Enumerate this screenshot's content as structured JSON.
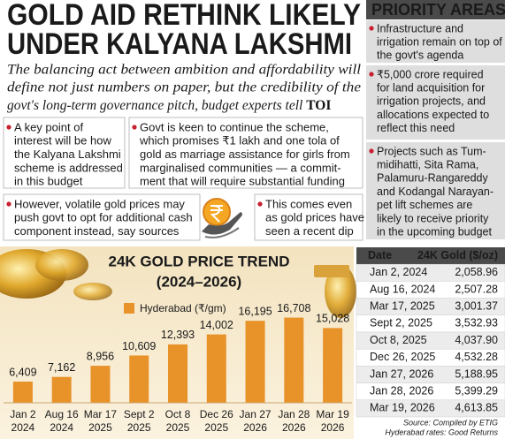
{
  "header": {
    "title_line1": "GOLD AID RETHINK LIKELY",
    "title_line2": "UNDER KALYANA LAKSHMI",
    "intro": [
      "The balancing act between ambition and affordability will",
      "define not just numbers on paper, but the credibility of the",
      "govt's long-term governance pitch, budget experts tell"
    ],
    "intro_emphasis": "TOI"
  },
  "points": [
    [
      "A key point of",
      "interest will be how",
      "the Kalyana Lakshmi",
      "scheme is addressed",
      "in this budget"
    ],
    [
      "Govt is keen to continue the scheme,",
      "which promises ₹1 lakh and one tola of",
      "gold as marriage assistance for girls from",
      "marginalised communities — a commit-",
      "ment that will require substantial funding"
    ],
    [
      "However, volatile gold prices may",
      "push govt to opt for additional cash",
      "component instead, say sources"
    ],
    [
      "This comes even",
      "as gold prices have",
      "seen a recent dip"
    ]
  ],
  "priority_areas": {
    "title": "PRIORITY AREAS",
    "items": [
      [
        "Infrastructure and",
        "irrigation remain on top of",
        "the govt's agenda"
      ],
      [
        "₹5,000 crore required",
        "for land acquisition for",
        "irrigation projects, and",
        "allocations expected to",
        "reflect this need"
      ],
      [
        "Projects such as Tum-",
        "midihatti, Sita Rama,",
        "Palamuru-Rangareddy",
        "and Kodangal Narayan-",
        "pet lift schemes are",
        "likely to receive priority",
        "in the upcoming budget"
      ]
    ]
  },
  "chart_data": {
    "type": "bar",
    "title": "24K GOLD PRICE TREND",
    "subtitle": "(2024–2026)",
    "categories": [
      [
        "Jan 2",
        "2024"
      ],
      [
        "Aug 16",
        "2024"
      ],
      [
        "Mar 17",
        "2025"
      ],
      [
        "Sept 2",
        "2025"
      ],
      [
        "Oct 8",
        "2025"
      ],
      [
        "Dec 26",
        "2025"
      ],
      [
        "Jan 27",
        "2026"
      ],
      [
        "Jan 28",
        "2026"
      ],
      [
        "Mar 19",
        "2026"
      ]
    ],
    "series": [
      {
        "name": "Hyderabad (₹/gm)",
        "color": "#e8922a",
        "values": [
          6409,
          7162,
          8956,
          10609,
          12393,
          14002,
          16195,
          16708,
          15028
        ],
        "value_labels": [
          "6,409",
          "7,162",
          "8,956",
          "10,609",
          "12,393",
          "14,002",
          "16,195",
          "16,708",
          "15,028"
        ]
      }
    ],
    "ylim": [
      3000,
      17500
    ]
  },
  "table": {
    "columns": [
      "Date",
      "24K Gold ($/oz)"
    ],
    "rows": [
      [
        "Jan 2, 2024",
        "2,058.96"
      ],
      [
        "Aug 16, 2024",
        "2,507.28"
      ],
      [
        "Mar 17, 2025",
        "3,001.37"
      ],
      [
        "Sept 2, 2025",
        "3,532.93"
      ],
      [
        "Oct 8, 2025",
        "4,037.90"
      ],
      [
        "Dec 26, 2025",
        "4,532.28"
      ],
      [
        "Jan 27, 2026",
        "5,188.95"
      ],
      [
        "Jan 28, 2026",
        "5,399.29"
      ],
      [
        "Mar 19, 2026",
        "4,613.85"
      ]
    ]
  },
  "source": [
    "Source: Compiled by ETIG",
    "Hyderabad rates: Good Returns"
  ]
}
